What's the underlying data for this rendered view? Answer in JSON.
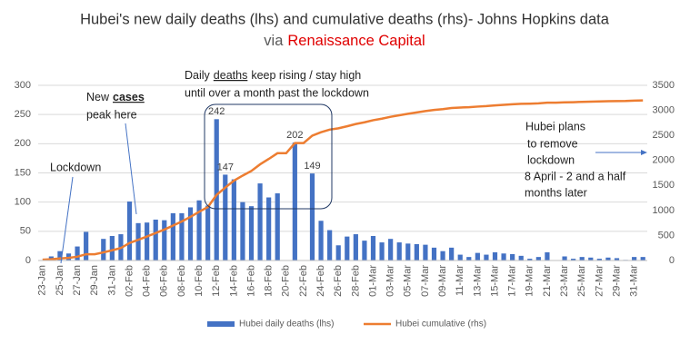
{
  "chart_data": {
    "type": "bar-line",
    "title": "Hubei's new daily deaths (lhs) and cumulative deaths (rhs)- Johns Hopkins data",
    "subtitle": "via",
    "subtitle_highlight": "Renaissance Capital",
    "categories": [
      "23-Jan",
      null,
      "25-Jan",
      null,
      "27-Jan",
      null,
      "29-Jan",
      null,
      "31-Jan",
      null,
      "02-Feb",
      null,
      "04-Feb",
      null,
      "06-Feb",
      null,
      "08-Feb",
      null,
      "10-Feb",
      null,
      "12-Feb",
      null,
      "14-Feb",
      null,
      "16-Feb",
      null,
      "18-Feb",
      null,
      "20-Feb",
      null,
      "22-Feb",
      null,
      "24-Feb",
      null,
      "26-Feb",
      null,
      "28-Feb",
      null,
      "01-Mar",
      null,
      "03-Mar",
      null,
      "05-Mar",
      null,
      "07-Mar",
      null,
      "09-Mar",
      null,
      "11-Mar",
      null,
      "13-Mar",
      null,
      "15-Mar",
      null,
      "17-Mar",
      null,
      "19-Mar",
      null,
      "21-Mar",
      null,
      "23-Mar",
      null,
      "25-Mar",
      null,
      "27-Mar",
      null,
      "29-Mar",
      null,
      "31-Mar",
      null
    ],
    "series": [
      {
        "name": "Hubei daily deaths (lhs)",
        "color": "#4472c4",
        "kind": "bar",
        "values": [
          0,
          7,
          16,
          12,
          24,
          49,
          0,
          37,
          42,
          45,
          101,
          64,
          65,
          70,
          69,
          81,
          81,
          91,
          103,
          94,
          242,
          147,
          139,
          100,
          93,
          132,
          108,
          115,
          0,
          202,
          0,
          149,
          68,
          52,
          26,
          41,
          45,
          34,
          42,
          31,
          37,
          31,
          29,
          28,
          27,
          22,
          16,
          22,
          10,
          6,
          13,
          10,
          14,
          12,
          11,
          8,
          3,
          6,
          14,
          0,
          7,
          3,
          6,
          5,
          3,
          5,
          4,
          1,
          6,
          6
        ],
        "value_labels": [
          null,
          null,
          null,
          null,
          null,
          null,
          null,
          null,
          null,
          null,
          null,
          null,
          null,
          null,
          null,
          null,
          null,
          null,
          null,
          null,
          242,
          147,
          null,
          null,
          null,
          null,
          null,
          null,
          null,
          202,
          null,
          149,
          null,
          null,
          null,
          null,
          null,
          null,
          null,
          null,
          null,
          null,
          null,
          null,
          null,
          null,
          null,
          null,
          null,
          null,
          null,
          null,
          null,
          null,
          null,
          null,
          null,
          null,
          null,
          null,
          null,
          null,
          null,
          null,
          null,
          null,
          null,
          null,
          null,
          null
        ]
      },
      {
        "name": "Hubei cumulative (rhs)",
        "color": "#ed7d31",
        "kind": "line",
        "axis": "y2",
        "values": [
          17,
          24,
          40,
          52,
          76,
          125,
          125,
          162,
          204,
          249,
          350,
          414,
          479,
          549,
          618,
          699,
          780,
          871,
          974,
          1068,
          1310,
          1457,
          1596,
          1696,
          1789,
          1921,
          2029,
          2144,
          2144,
          2346,
          2346,
          2495,
          2563,
          2615,
          2641,
          2682,
          2727,
          2761,
          2803,
          2834,
          2871,
          2902,
          2931,
          2959,
          2986,
          3008,
          3024,
          3046,
          3056,
          3062,
          3075,
          3085,
          3099,
          3111,
          3122,
          3130,
          3133,
          3139,
          3153,
          3153,
          3160,
          3163,
          3169,
          3174,
          3177,
          3182,
          3186,
          3187,
          3193,
          3199
        ]
      }
    ],
    "ylim": [
      0,
      300
    ],
    "yticks": [
      0,
      50,
      100,
      150,
      200,
      250,
      300
    ],
    "y2lim": [
      0,
      3500
    ],
    "y2ticks": [
      0,
      500,
      1000,
      1500,
      2000,
      2500,
      3000,
      3500
    ],
    "grid": true,
    "legend": "bottom",
    "annotations": [
      {
        "lines": [
          [
            "Lockdown"
          ]
        ]
      },
      {
        "lines": [
          [
            "New",
            "cases"
          ],
          [
            "peak here"
          ]
        ]
      },
      {
        "lines": [
          [
            "Daily",
            "deaths",
            "keep rising / stay high"
          ],
          [
            "until over a month past the lockdown"
          ]
        ]
      },
      {
        "lines": [
          [
            "Hubei plans"
          ],
          [
            "to remove"
          ],
          [
            "lockdown"
          ],
          [
            "8 April - 2 and a half"
          ],
          [
            "months later"
          ]
        ]
      }
    ]
  }
}
